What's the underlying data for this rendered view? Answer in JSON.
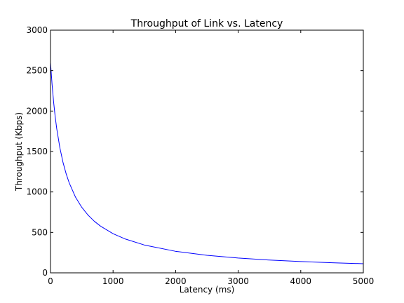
{
  "chart_data": {
    "type": "line",
    "title": "Throughput of Link vs. Latency",
    "xlabel": "Latency (ms)",
    "ylabel": "Throughput (Kbps)",
    "xlim": [
      0,
      5000
    ],
    "ylim": [
      0,
      3000
    ],
    "xticks": [
      0,
      1000,
      2000,
      3000,
      4000,
      5000
    ],
    "yticks": [
      0,
      500,
      1000,
      1500,
      2000,
      2500,
      3000
    ],
    "xtick_labels": [
      "0",
      "1000",
      "2000",
      "3000",
      "4000",
      "5000"
    ],
    "ytick_labels": [
      "0",
      "500",
      "1000",
      "1500",
      "2000",
      "2500",
      "3000"
    ],
    "grid": false,
    "legend": "none",
    "series": [
      {
        "color": "#0000ff",
        "x": [
          0,
          25,
          50,
          75,
          100,
          150,
          200,
          250,
          300,
          400,
          500,
          600,
          700,
          800,
          1000,
          1200,
          1500,
          2000,
          2500,
          3000,
          3500,
          4000,
          4500,
          5000
        ],
        "y": [
          2600,
          2330,
          2110,
          1930,
          1780,
          1545,
          1365,
          1225,
          1110,
          935,
          810,
          714,
          638,
          577,
          484,
          417,
          344,
          266,
          217,
          183,
          158,
          140,
          125,
          113
        ]
      }
    ]
  }
}
